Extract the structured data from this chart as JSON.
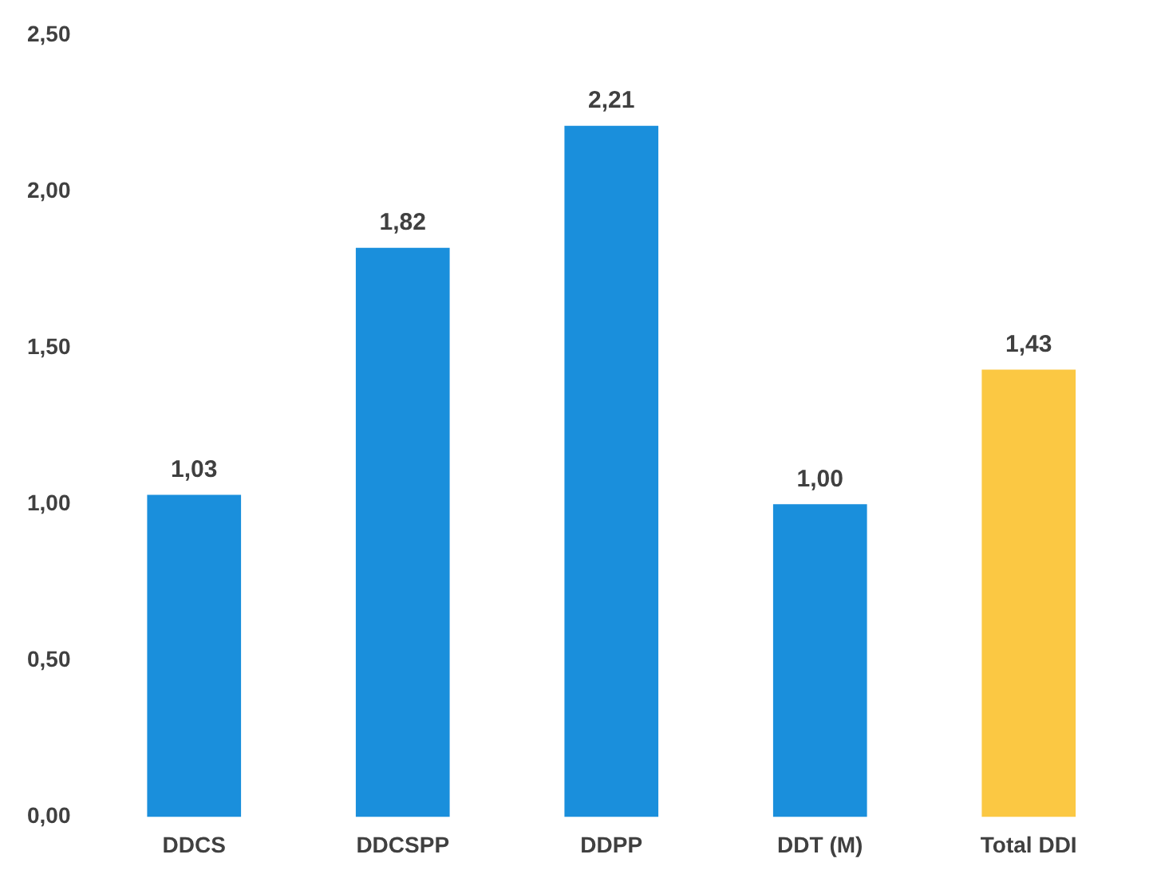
{
  "chart_data": {
    "type": "bar",
    "categories": [
      "DDCS",
      "DDCSPP",
      "DDPP",
      "DDT (M)",
      "Total DDI"
    ],
    "values": [
      1.03,
      1.82,
      2.21,
      1.0,
      1.43
    ],
    "colors": [
      "#1a8fdc",
      "#1a8fdc",
      "#1a8fdc",
      "#1a8fdc",
      "#fbc843"
    ],
    "value_labels": [
      "1,03",
      "1,82",
      "2,21",
      "1,00",
      "1,43"
    ],
    "ylim": [
      0,
      2.5
    ],
    "yticks": [
      {
        "value": 0,
        "label": "0,00"
      },
      {
        "value": 0.5,
        "label": "0,50"
      },
      {
        "value": 1,
        "label": "1,00"
      },
      {
        "value": 1.5,
        "label": "1,50"
      },
      {
        "value": 2,
        "label": "2,00"
      },
      {
        "value": 2.5,
        "label": "2,50"
      }
    ],
    "grid": false,
    "legend": false
  }
}
